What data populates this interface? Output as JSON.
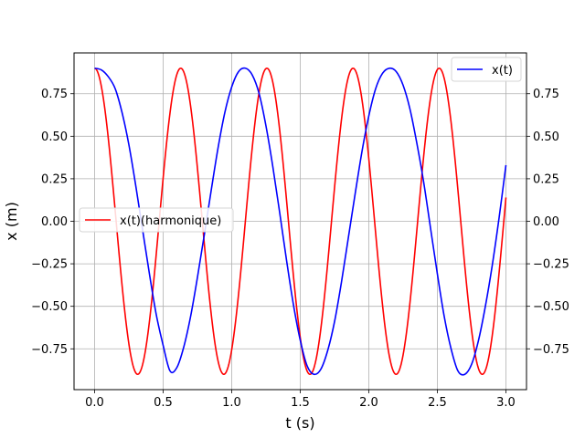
{
  "chart_data": {
    "type": "line",
    "xlabel": "t (s)",
    "ylabel": "x (m)",
    "xlim": [
      -0.15,
      3.15
    ],
    "ylim": [
      -0.99,
      0.99
    ],
    "xticks": [
      0.0,
      0.5,
      1.0,
      1.5,
      2.0,
      2.5,
      3.0
    ],
    "xtick_labels": [
      "0.0",
      "0.5",
      "1.0",
      "1.5",
      "2.0",
      "2.5",
      "3.0"
    ],
    "yticks": [
      -0.75,
      -0.5,
      -0.25,
      0.0,
      0.25,
      0.5,
      0.75
    ],
    "ytick_labels": [
      "−0.75",
      "−0.50",
      "−0.25",
      "0.00",
      "0.25",
      "0.50",
      "0.75"
    ],
    "right_ytick_labels": [
      "−0.75",
      "−0.50",
      "−0.25",
      "0.00",
      "0.25",
      "0.50",
      "0.75"
    ],
    "grid": true,
    "series": [
      {
        "name": "x(t)",
        "color": "#0000ff",
        "legend_position": "upper right",
        "x": [
          0.0,
          0.05,
          0.1,
          0.15,
          0.2,
          0.25,
          0.3,
          0.35,
          0.4,
          0.45,
          0.5,
          0.55,
          0.6,
          0.65,
          0.7,
          0.75,
          0.8,
          0.85,
          0.9,
          0.95,
          1.0,
          1.05,
          1.1,
          1.15,
          1.2,
          1.25,
          1.3,
          1.35,
          1.4,
          1.45,
          1.5,
          1.55,
          1.6,
          1.65,
          1.7,
          1.75,
          1.8,
          1.85,
          1.9,
          1.95,
          2.0,
          2.05,
          2.1,
          2.15,
          2.2,
          2.25,
          2.3,
          2.35,
          2.4,
          2.45,
          2.5,
          2.55,
          2.6,
          2.65,
          2.7,
          2.75,
          2.8,
          2.85,
          2.9,
          2.95,
          3.0
        ],
        "y": [
          0.9,
          0.89,
          0.85,
          0.78,
          0.64,
          0.45,
          0.21,
          -0.05,
          -0.31,
          -0.55,
          -0.73,
          -0.88,
          -0.86,
          -0.74,
          -0.56,
          -0.33,
          -0.08,
          0.18,
          0.43,
          0.64,
          0.79,
          0.88,
          0.9,
          0.86,
          0.75,
          0.56,
          0.32,
          0.05,
          -0.23,
          -0.49,
          -0.7,
          -0.85,
          -0.9,
          -0.87,
          -0.76,
          -0.59,
          -0.36,
          -0.1,
          0.16,
          0.41,
          0.62,
          0.78,
          0.87,
          0.9,
          0.88,
          0.8,
          0.66,
          0.46,
          0.23,
          -0.04,
          -0.31,
          -0.56,
          -0.75,
          -0.88,
          -0.9,
          -0.84,
          -0.7,
          -0.5,
          -0.26,
          0.02,
          0.33
        ]
      },
      {
        "name": "x(t)(harmonique)",
        "color": "#ff0000",
        "legend_position": "center left",
        "period": 0.6283,
        "amplitude": 0.9,
        "x_start": 0.0,
        "x_end": 3.0
      }
    ]
  }
}
